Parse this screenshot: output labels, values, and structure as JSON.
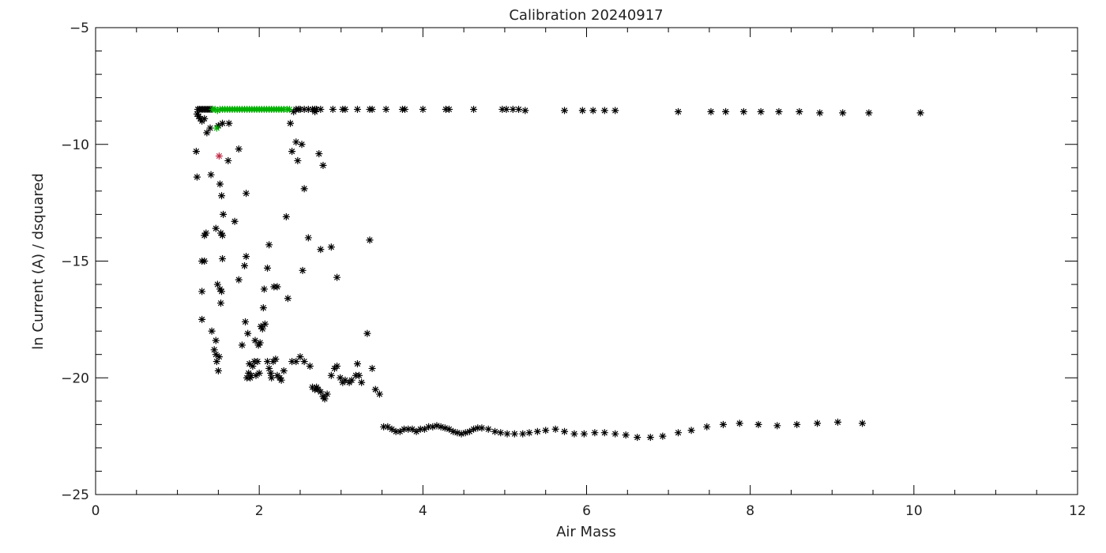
{
  "chart_data": {
    "type": "scatter",
    "title": "Calibration 20240917",
    "xlabel": "Air Mass",
    "ylabel": "ln Current (A) / dsquared",
    "xlim": [
      0,
      12
    ],
    "ylim": [
      -25,
      -5
    ],
    "x_major_ticks": [
      0,
      2,
      4,
      6,
      8,
      10,
      12
    ],
    "y_major_ticks": [
      -25,
      -20,
      -15,
      -10,
      -5
    ],
    "x_tick_labels": [
      "0",
      "2",
      "4",
      "6",
      "8",
      "10",
      "12"
    ],
    "y_tick_labels": [
      "−25",
      "−20",
      "−15",
      "−10",
      "−5"
    ],
    "grid": false,
    "marker": "asterisk",
    "series": [
      {
        "color": "#000000",
        "points": [
          [
            1.25,
            -8.5
          ],
          [
            1.27,
            -8.5
          ],
          [
            1.29,
            -8.5
          ],
          [
            1.31,
            -8.5
          ],
          [
            1.33,
            -8.5
          ],
          [
            1.35,
            -8.5
          ],
          [
            1.37,
            -8.5
          ],
          [
            1.39,
            -8.5
          ],
          [
            1.41,
            -8.5
          ],
          [
            1.43,
            -8.5
          ],
          [
            1.24,
            -8.7
          ],
          [
            1.26,
            -8.8
          ],
          [
            1.28,
            -8.9
          ],
          [
            1.3,
            -9.0
          ],
          [
            1.33,
            -8.9
          ],
          [
            1.36,
            -9.5
          ],
          [
            1.4,
            -9.3
          ],
          [
            1.5,
            -9.2
          ],
          [
            1.55,
            -9.1
          ],
          [
            1.63,
            -9.1
          ],
          [
            1.23,
            -10.3
          ],
          [
            1.24,
            -11.4
          ],
          [
            1.41,
            -11.3
          ],
          [
            1.52,
            -11.7
          ],
          [
            1.54,
            -12.2
          ],
          [
            1.62,
            -10.7
          ],
          [
            1.75,
            -10.2
          ],
          [
            1.84,
            -12.1
          ],
          [
            1.33,
            -13.9
          ],
          [
            1.35,
            -13.8
          ],
          [
            1.47,
            -13.6
          ],
          [
            1.53,
            -13.8
          ],
          [
            1.55,
            -13.9
          ],
          [
            1.56,
            -13.0
          ],
          [
            1.7,
            -13.3
          ],
          [
            1.3,
            -15.0
          ],
          [
            1.33,
            -15.0
          ],
          [
            1.49,
            -16.0
          ],
          [
            1.52,
            -16.2
          ],
          [
            1.54,
            -16.3
          ],
          [
            1.55,
            -14.9
          ],
          [
            1.75,
            -15.8
          ],
          [
            1.82,
            -15.2
          ],
          [
            1.84,
            -14.8
          ],
          [
            1.3,
            -16.3
          ],
          [
            1.53,
            -16.8
          ],
          [
            1.3,
            -17.5
          ],
          [
            1.42,
            -18.0
          ],
          [
            1.47,
            -18.4
          ],
          [
            1.45,
            -18.8
          ],
          [
            1.47,
            -19.0
          ],
          [
            1.48,
            -19.3
          ],
          [
            1.5,
            -19.7
          ],
          [
            1.51,
            -19.1
          ],
          [
            1.79,
            -18.6
          ],
          [
            1.83,
            -17.6
          ],
          [
            1.86,
            -18.1
          ],
          [
            1.95,
            -18.4
          ],
          [
            1.99,
            -18.6
          ],
          [
            2.01,
            -18.5
          ],
          [
            2.02,
            -17.8
          ],
          [
            2.04,
            -17.9
          ],
          [
            2.05,
            -17.0
          ],
          [
            2.07,
            -17.7
          ],
          [
            1.87,
            -19.8
          ],
          [
            1.89,
            -20.0
          ],
          [
            1.9,
            -19.9
          ],
          [
            1.92,
            -19.5
          ],
          [
            1.94,
            -19.3
          ],
          [
            1.96,
            -19.9
          ],
          [
            1.98,
            -19.3
          ],
          [
            2.0,
            -19.8
          ],
          [
            1.85,
            -20.0
          ],
          [
            1.88,
            -19.4
          ],
          [
            2.1,
            -19.3
          ],
          [
            2.12,
            -19.6
          ],
          [
            2.14,
            -19.8
          ],
          [
            2.15,
            -20.0
          ],
          [
            2.17,
            -19.3
          ],
          [
            2.2,
            -19.2
          ],
          [
            2.22,
            -19.9
          ],
          [
            2.25,
            -20.0
          ],
          [
            2.27,
            -20.1
          ],
          [
            2.3,
            -19.7
          ],
          [
            2.06,
            -16.2
          ],
          [
            2.1,
            -15.3
          ],
          [
            2.12,
            -14.3
          ],
          [
            2.18,
            -16.1
          ],
          [
            2.22,
            -16.1
          ],
          [
            2.35,
            -16.6
          ],
          [
            2.33,
            -13.1
          ],
          [
            2.38,
            -9.1
          ],
          [
            2.4,
            -10.3
          ],
          [
            2.45,
            -9.9
          ],
          [
            2.47,
            -10.7
          ],
          [
            2.52,
            -10.0
          ],
          [
            2.55,
            -11.9
          ],
          [
            2.6,
            -14.0
          ],
          [
            2.53,
            -15.4
          ],
          [
            2.42,
            -8.6
          ],
          [
            2.45,
            -8.5
          ],
          [
            2.48,
            -8.5
          ],
          [
            2.5,
            -8.5
          ],
          [
            2.55,
            -8.5
          ],
          [
            2.6,
            -8.5
          ],
          [
            2.65,
            -8.5
          ],
          [
            2.68,
            -8.5
          ],
          [
            2.7,
            -8.5
          ],
          [
            2.68,
            -8.6
          ],
          [
            2.73,
            -10.4
          ],
          [
            2.78,
            -10.9
          ],
          [
            2.75,
            -14.5
          ],
          [
            2.88,
            -14.4
          ],
          [
            2.95,
            -15.7
          ],
          [
            3.35,
            -14.1
          ],
          [
            3.32,
            -18.1
          ],
          [
            2.4,
            -19.3
          ],
          [
            2.45,
            -19.3
          ],
          [
            2.5,
            -19.1
          ],
          [
            2.55,
            -19.3
          ],
          [
            2.62,
            -19.5
          ],
          [
            2.65,
            -20.4
          ],
          [
            2.68,
            -20.5
          ],
          [
            2.7,
            -20.4
          ],
          [
            2.72,
            -20.5
          ],
          [
            2.75,
            -20.6
          ],
          [
            2.78,
            -20.8
          ],
          [
            2.8,
            -20.9
          ],
          [
            2.83,
            -20.7
          ],
          [
            2.88,
            -19.9
          ],
          [
            2.92,
            -19.6
          ],
          [
            2.95,
            -19.5
          ],
          [
            2.99,
            -20.0
          ],
          [
            3.02,
            -20.2
          ],
          [
            3.05,
            -20.1
          ],
          [
            3.1,
            -20.2
          ],
          [
            3.13,
            -20.1
          ],
          [
            3.18,
            -19.9
          ],
          [
            3.2,
            -19.4
          ],
          [
            3.22,
            -19.9
          ],
          [
            3.25,
            -20.2
          ],
          [
            3.38,
            -19.6
          ],
          [
            3.42,
            -20.5
          ],
          [
            3.47,
            -20.7
          ],
          [
            2.75,
            -8.5
          ],
          [
            2.9,
            -8.5
          ],
          [
            3.02,
            -8.5
          ],
          [
            3.05,
            -8.5
          ],
          [
            3.2,
            -8.5
          ],
          [
            3.35,
            -8.5
          ],
          [
            3.38,
            -8.5
          ],
          [
            3.55,
            -8.5
          ],
          [
            3.75,
            -8.5
          ],
          [
            3.78,
            -8.5
          ],
          [
            4.0,
            -8.5
          ],
          [
            4.28,
            -8.5
          ],
          [
            4.32,
            -8.5
          ],
          [
            4.62,
            -8.5
          ],
          [
            4.97,
            -8.5
          ],
          [
            5.02,
            -8.5
          ],
          [
            5.1,
            -8.5
          ],
          [
            5.17,
            -8.5
          ],
          [
            5.25,
            -8.55
          ],
          [
            5.73,
            -8.55
          ],
          [
            5.95,
            -8.55
          ],
          [
            6.08,
            -8.55
          ],
          [
            6.22,
            -8.55
          ],
          [
            6.35,
            -8.55
          ],
          [
            7.12,
            -8.6
          ],
          [
            7.52,
            -8.6
          ],
          [
            7.7,
            -8.6
          ],
          [
            7.92,
            -8.6
          ],
          [
            8.13,
            -8.6
          ],
          [
            8.35,
            -8.6
          ],
          [
            8.6,
            -8.6
          ],
          [
            8.85,
            -8.65
          ],
          [
            9.13,
            -8.65
          ],
          [
            9.45,
            -8.65
          ],
          [
            10.08,
            -8.65
          ],
          [
            3.52,
            -22.1
          ],
          [
            3.57,
            -22.1
          ],
          [
            3.62,
            -22.2
          ],
          [
            3.67,
            -22.3
          ],
          [
            3.72,
            -22.3
          ],
          [
            3.77,
            -22.2
          ],
          [
            3.82,
            -22.2
          ],
          [
            3.87,
            -22.2
          ],
          [
            3.92,
            -22.3
          ],
          [
            3.97,
            -22.2
          ],
          [
            4.02,
            -22.2
          ],
          [
            4.07,
            -22.1
          ],
          [
            4.12,
            -22.1
          ],
          [
            4.17,
            -22.05
          ],
          [
            4.22,
            -22.1
          ],
          [
            4.27,
            -22.15
          ],
          [
            4.32,
            -22.2
          ],
          [
            4.37,
            -22.3
          ],
          [
            4.42,
            -22.35
          ],
          [
            4.47,
            -22.4
          ],
          [
            4.52,
            -22.35
          ],
          [
            4.57,
            -22.3
          ],
          [
            4.62,
            -22.2
          ],
          [
            4.67,
            -22.15
          ],
          [
            4.72,
            -22.15
          ],
          [
            4.8,
            -22.2
          ],
          [
            4.88,
            -22.3
          ],
          [
            4.95,
            -22.35
          ],
          [
            5.03,
            -22.4
          ],
          [
            5.12,
            -22.4
          ],
          [
            5.22,
            -22.4
          ],
          [
            5.3,
            -22.35
          ],
          [
            5.4,
            -22.3
          ],
          [
            5.5,
            -22.25
          ],
          [
            5.62,
            -22.2
          ],
          [
            5.73,
            -22.3
          ],
          [
            5.85,
            -22.4
          ],
          [
            5.97,
            -22.4
          ],
          [
            6.1,
            -22.35
          ],
          [
            6.22,
            -22.35
          ],
          [
            6.35,
            -22.4
          ],
          [
            6.48,
            -22.45
          ],
          [
            6.62,
            -22.55
          ],
          [
            6.78,
            -22.55
          ],
          [
            6.93,
            -22.5
          ],
          [
            7.12,
            -22.35
          ],
          [
            7.28,
            -22.25
          ],
          [
            7.47,
            -22.1
          ],
          [
            7.67,
            -22.0
          ],
          [
            7.87,
            -21.95
          ],
          [
            8.1,
            -22.0
          ],
          [
            8.33,
            -22.05
          ],
          [
            8.57,
            -22.0
          ],
          [
            8.82,
            -21.95
          ],
          [
            9.07,
            -21.9
          ],
          [
            9.37,
            -21.95
          ]
        ]
      },
      {
        "color": "#00b000",
        "points": [
          [
            1.43,
            -8.5
          ],
          [
            1.46,
            -8.5
          ],
          [
            1.49,
            -8.55
          ],
          [
            1.52,
            -8.5
          ],
          [
            1.55,
            -8.5
          ],
          [
            1.58,
            -8.5
          ],
          [
            1.61,
            -8.5
          ],
          [
            1.64,
            -8.5
          ],
          [
            1.67,
            -8.5
          ],
          [
            1.7,
            -8.5
          ],
          [
            1.73,
            -8.5
          ],
          [
            1.76,
            -8.5
          ],
          [
            1.79,
            -8.5
          ],
          [
            1.82,
            -8.5
          ],
          [
            1.85,
            -8.5
          ],
          [
            1.88,
            -8.5
          ],
          [
            1.91,
            -8.5
          ],
          [
            1.94,
            -8.5
          ],
          [
            1.97,
            -8.5
          ],
          [
            2.0,
            -8.5
          ],
          [
            2.03,
            -8.5
          ],
          [
            2.06,
            -8.5
          ],
          [
            2.09,
            -8.5
          ],
          [
            2.12,
            -8.5
          ],
          [
            2.15,
            -8.5
          ],
          [
            2.18,
            -8.5
          ],
          [
            2.21,
            -8.5
          ],
          [
            2.24,
            -8.5
          ],
          [
            2.27,
            -8.5
          ],
          [
            2.3,
            -8.5
          ],
          [
            2.34,
            -8.5
          ],
          [
            2.37,
            -8.5
          ],
          [
            1.48,
            -9.3
          ]
        ]
      },
      {
        "color": "#c0304a",
        "points": [
          [
            1.51,
            -10.5
          ]
        ]
      }
    ]
  }
}
